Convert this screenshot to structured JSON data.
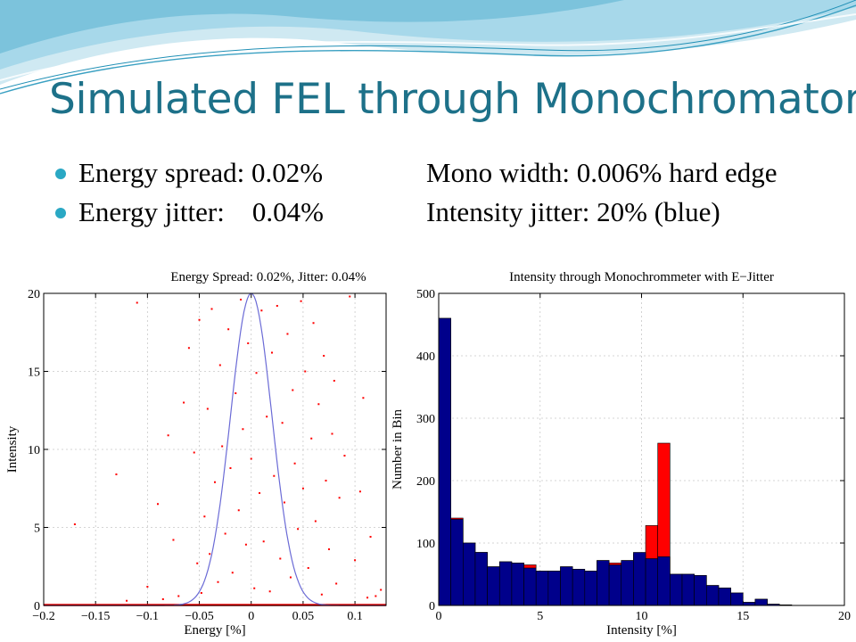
{
  "slide": {
    "title": "Simulated FEL through Monochromator",
    "accent_color": "#1d7189",
    "bullet_color": "#2aa8c4",
    "bullets": [
      {
        "left": "Energy spread: 0.02%",
        "right": "Mono width: 0.006% hard edge"
      },
      {
        "left": "Energy jitter:    0.04%",
        "right": "Intensity jitter: 20% (blue)"
      }
    ]
  },
  "chart_data": [
    {
      "type": "scatter",
      "title": "Energy Spread: 0.02%, Jitter: 0.04%",
      "xlabel": "Energy [%]",
      "ylabel": "Intensity",
      "xlim": [
        -0.2,
        0.13
      ],
      "ylim": [
        0,
        20
      ],
      "xticks": [
        -0.2,
        -0.15,
        -0.1,
        -0.05,
        0,
        0.05,
        0.1
      ],
      "xtick_labels": [
        "−0.2",
        "−0.15",
        "−0.1",
        "−0.05",
        "0",
        "0.05",
        "0.1"
      ],
      "yticks": [
        0,
        5,
        10,
        15,
        20
      ],
      "ytick_labels": [
        "0",
        "5",
        "10",
        "15",
        "20"
      ],
      "grid": true,
      "series": [
        {
          "kind": "line",
          "color": "#6b6bd6",
          "gaussian": {
            "amplitude": 20,
            "mean": 0,
            "sigma": 0.02
          }
        },
        {
          "kind": "scatter",
          "color": "#ff0000",
          "points": [
            [
              -0.17,
              5.2
            ],
            [
              -0.13,
              8.4
            ],
            [
              -0.11,
              19.4
            ],
            [
              -0.1,
              1.2
            ],
            [
              -0.09,
              6.5
            ],
            [
              -0.08,
              10.9
            ],
            [
              -0.075,
              4.2
            ],
            [
              -0.07,
              0.6
            ],
            [
              -0.065,
              13.0
            ],
            [
              -0.06,
              16.5
            ],
            [
              -0.055,
              9.8
            ],
            [
              -0.052,
              2.7
            ],
            [
              -0.05,
              18.3
            ],
            [
              -0.048,
              0.8
            ],
            [
              -0.045,
              5.7
            ],
            [
              -0.042,
              12.6
            ],
            [
              -0.04,
              3.3
            ],
            [
              -0.038,
              19.0
            ],
            [
              -0.035,
              7.9
            ],
            [
              -0.032,
              1.5
            ],
            [
              -0.03,
              15.4
            ],
            [
              -0.028,
              10.2
            ],
            [
              -0.025,
              4.6
            ],
            [
              -0.022,
              17.7
            ],
            [
              -0.02,
              8.8
            ],
            [
              -0.018,
              2.1
            ],
            [
              -0.015,
              13.6
            ],
            [
              -0.012,
              6.1
            ],
            [
              -0.01,
              19.6
            ],
            [
              -0.008,
              11.3
            ],
            [
              -0.005,
              3.9
            ],
            [
              -0.003,
              16.8
            ],
            [
              0,
              9.4
            ],
            [
              0.003,
              1.1
            ],
            [
              0.005,
              14.9
            ],
            [
              0.008,
              7.2
            ],
            [
              0.01,
              18.9
            ],
            [
              0.012,
              4.1
            ],
            [
              0.015,
              12.1
            ],
            [
              0.018,
              0.9
            ],
            [
              0.02,
              16.2
            ],
            [
              0.022,
              8.3
            ],
            [
              0.025,
              19.2
            ],
            [
              0.028,
              3.0
            ],
            [
              0.03,
              11.7
            ],
            [
              0.032,
              6.6
            ],
            [
              0.035,
              17.4
            ],
            [
              0.038,
              1.8
            ],
            [
              0.04,
              13.8
            ],
            [
              0.042,
              9.1
            ],
            [
              0.045,
              4.9
            ],
            [
              0.048,
              19.5
            ],
            [
              0.05,
              7.5
            ],
            [
              0.052,
              15.0
            ],
            [
              0.055,
              2.4
            ],
            [
              0.058,
              10.7
            ],
            [
              0.06,
              18.1
            ],
            [
              0.062,
              5.4
            ],
            [
              0.065,
              12.9
            ],
            [
              0.068,
              0.7
            ],
            [
              0.07,
              16.0
            ],
            [
              0.072,
              8.0
            ],
            [
              0.075,
              3.6
            ],
            [
              0.078,
              11.0
            ],
            [
              0.08,
              14.4
            ],
            [
              0.082,
              1.4
            ],
            [
              0.085,
              6.9
            ],
            [
              0.09,
              9.6
            ],
            [
              0.095,
              19.8
            ],
            [
              0.1,
              2.9
            ],
            [
              0.105,
              7.3
            ],
            [
              0.108,
              13.3
            ],
            [
              0.112,
              0.5
            ],
            [
              0.115,
              4.4
            ],
            [
              -0.12,
              0.3
            ],
            [
              -0.085,
              0.4
            ],
            [
              0.12,
              0.6
            ],
            [
              0.125,
              1.0
            ]
          ]
        }
      ]
    },
    {
      "type": "bar",
      "title": "Intensity through Monochrommeter with E−Jitter",
      "xlabel": "Intensity [%]",
      "ylabel": "Number in Bin",
      "xlim": [
        0,
        20
      ],
      "ylim": [
        0,
        500
      ],
      "xticks": [
        0,
        5,
        10,
        15,
        20
      ],
      "yticks": [
        0,
        100,
        200,
        300,
        400,
        500
      ],
      "grid": true,
      "bin_width": 0.6,
      "bin_starts": [
        0,
        0.6,
        1.2,
        1.8,
        2.4,
        3.0,
        3.6,
        4.2,
        4.8,
        5.4,
        6.0,
        6.6,
        7.2,
        7.8,
        8.4,
        9.0,
        9.6,
        10.2,
        10.8,
        11.4,
        12.0,
        12.6,
        13.2,
        13.8,
        14.4,
        15.0,
        15.6,
        16.2,
        16.8
      ],
      "series": [
        {
          "name": "",
          "color": "#ff0000",
          "values": [
            460,
            140,
            100,
            85,
            62,
            70,
            68,
            65,
            55,
            55,
            62,
            58,
            55,
            72,
            68,
            72,
            82,
            128,
            260,
            50,
            50,
            48,
            32,
            28,
            20,
            5,
            10,
            2,
            1
          ]
        },
        {
          "name": "blue",
          "color": "#00008b",
          "values": [
            460,
            138,
            100,
            85,
            62,
            70,
            68,
            60,
            55,
            55,
            62,
            58,
            55,
            72,
            65,
            72,
            85,
            75,
            78,
            50,
            50,
            48,
            32,
            28,
            20,
            5,
            10,
            2,
            1
          ]
        }
      ]
    }
  ]
}
